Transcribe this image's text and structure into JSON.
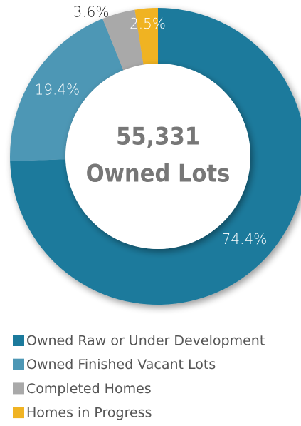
{
  "chart_data": {
    "type": "donut",
    "categories": [
      "Owned Raw or Under Development",
      "Owned Finished Vacant Lots",
      "Completed Homes",
      "Homes in Progress"
    ],
    "values": [
      74.4,
      19.4,
      3.6,
      2.5
    ],
    "value_labels": [
      "74.4%",
      "19.4%",
      "3.6%",
      "2.5%"
    ],
    "colors": [
      "#1b7a9c",
      "#4d97b5",
      "#a9a9a9",
      "#f0b323"
    ],
    "annotations": [
      "55,331",
      "Owned Lots"
    ]
  }
}
